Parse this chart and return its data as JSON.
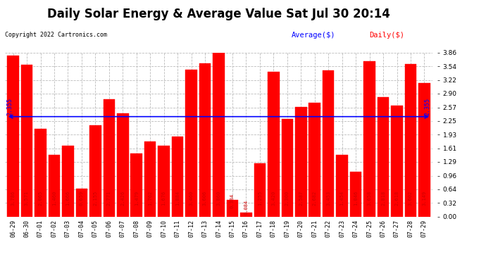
{
  "title": "Daily Solar Energy & Average Value Sat Jul 30 20:14",
  "copyright": "Copyright 2022 Cartronics.com",
  "legend_avg": "Average($)",
  "legend_daily": "Daily($)",
  "average_value": 2.355,
  "categories": [
    "06-29",
    "06-30",
    "07-01",
    "07-02",
    "07-03",
    "07-04",
    "07-05",
    "07-06",
    "07-07",
    "07-08",
    "07-09",
    "07-10",
    "07-11",
    "07-12",
    "07-13",
    "07-14",
    "07-15",
    "07-16",
    "07-17",
    "07-18",
    "07-19",
    "07-20",
    "07-21",
    "07-22",
    "07-23",
    "07-24",
    "07-25",
    "07-26",
    "07-27",
    "07-28",
    "07-29"
  ],
  "values": [
    3.786,
    3.571,
    2.065,
    1.46,
    1.666,
    0.659,
    2.155,
    2.771,
    2.426,
    1.479,
    1.762,
    1.676,
    1.884,
    3.46,
    3.606,
    3.86,
    0.384,
    0.084,
    1.255,
    3.42,
    2.3,
    2.587,
    2.682,
    3.453,
    1.454,
    1.046,
    3.658,
    2.818,
    2.618,
    3.602,
    3.149
  ],
  "bar_color": "#ff0000",
  "avg_line_color": "#0000ff",
  "avg_label_color": "#0000ff",
  "daily_label_color": "#ff0000",
  "title_fontsize": 12,
  "ylabel_right_ticks": [
    0.0,
    0.32,
    0.64,
    0.96,
    1.29,
    1.61,
    1.93,
    2.25,
    2.57,
    2.9,
    3.22,
    3.54,
    3.86
  ],
  "ylim": [
    0,
    3.86
  ],
  "background_color": "#ffffff",
  "plot_bg_color": "#ffffff",
  "grid_color": "#bbbbbb"
}
